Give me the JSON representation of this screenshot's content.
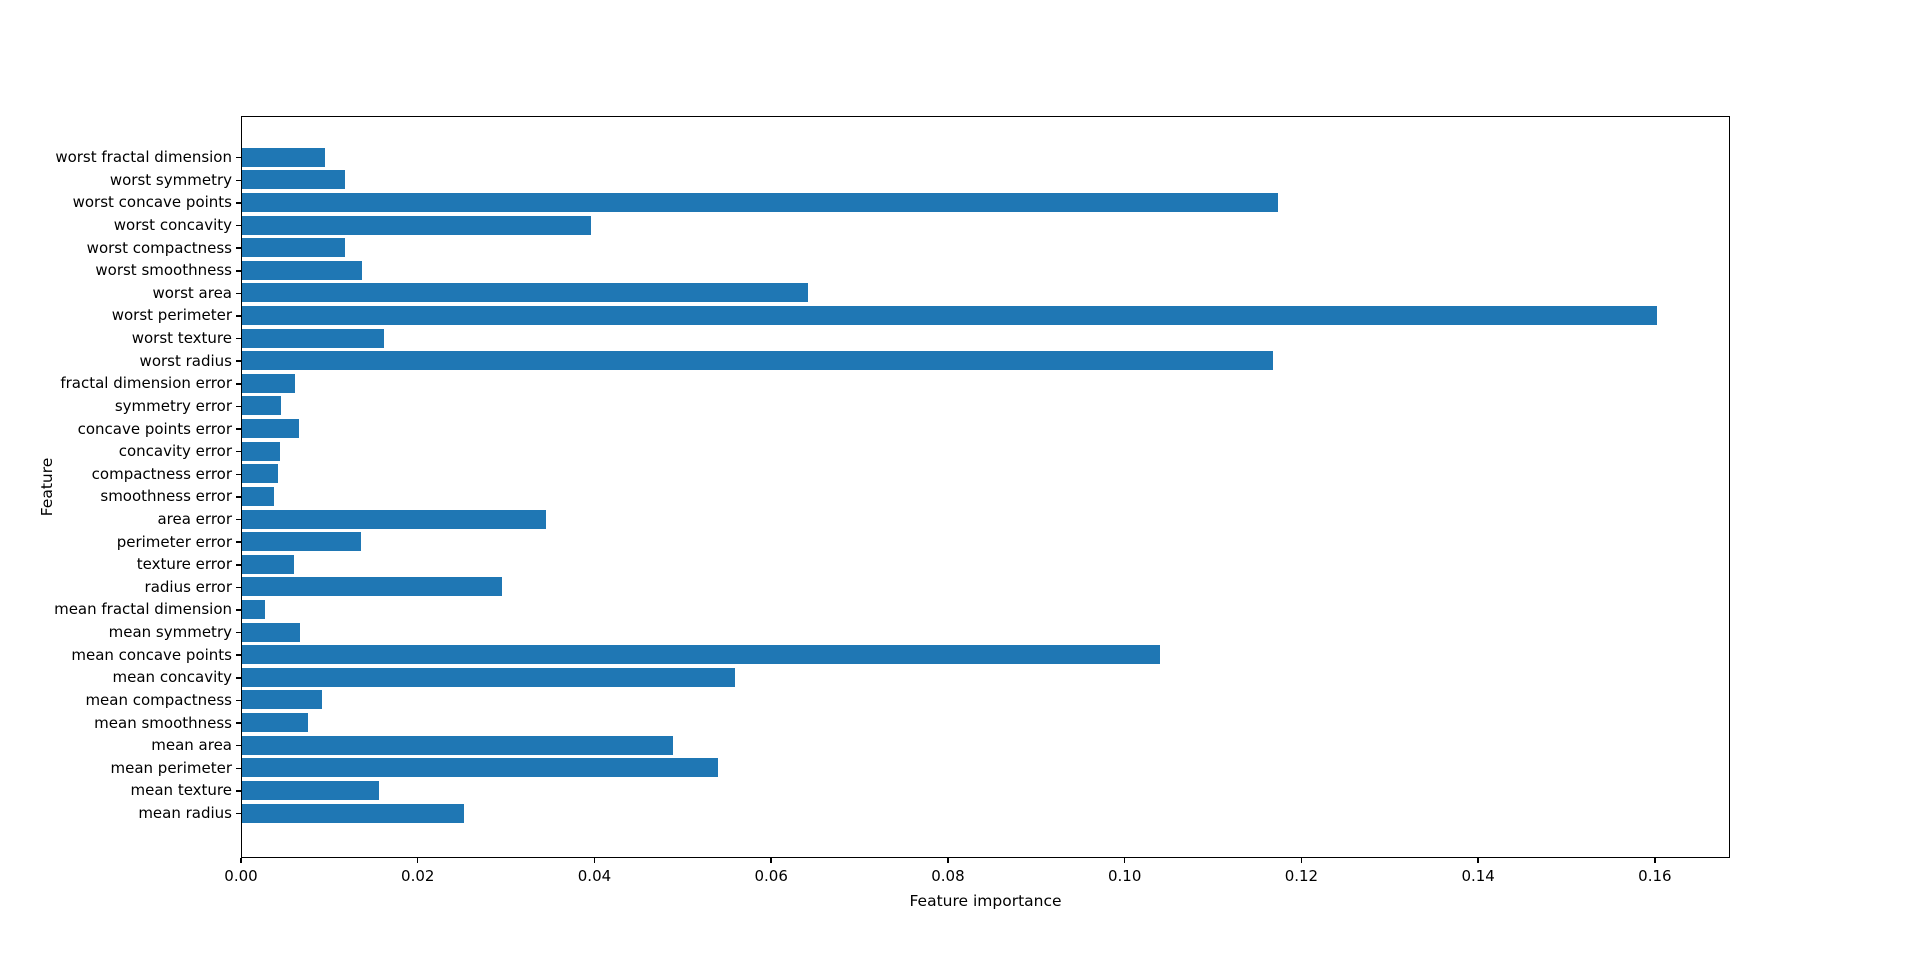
{
  "chart_data": {
    "type": "bar",
    "orientation": "horizontal",
    "order": "top-to-bottom",
    "title": "",
    "xlabel": "Feature importance",
    "ylabel": "Feature",
    "categories": [
      "worst fractal dimension",
      "worst symmetry",
      "worst concave points",
      "worst concavity",
      "worst compactness",
      "worst smoothness",
      "worst area",
      "worst perimeter",
      "worst texture",
      "worst radius",
      "fractal dimension error",
      "symmetry error",
      "concave points error",
      "concavity error",
      "compactness error",
      "smoothness error",
      "area error",
      "perimeter error",
      "texture error",
      "radius error",
      "mean fractal dimension",
      "mean symmetry",
      "mean concave points",
      "mean concavity",
      "mean compactness",
      "mean smoothness",
      "mean area",
      "mean perimeter",
      "mean texture",
      "mean radius"
    ],
    "values": [
      0.0094,
      0.0117,
      0.1172,
      0.0395,
      0.0117,
      0.0136,
      0.064,
      0.1601,
      0.0161,
      0.1167,
      0.006,
      0.0044,
      0.0065,
      0.0043,
      0.0041,
      0.0036,
      0.0344,
      0.0135,
      0.0059,
      0.0294,
      0.0026,
      0.0066,
      0.1039,
      0.0558,
      0.0091,
      0.0075,
      0.0488,
      0.0539,
      0.0155,
      0.0251
    ],
    "x_ticks": [
      "0.00",
      "0.02",
      "0.04",
      "0.06",
      "0.08",
      "0.10",
      "0.12",
      "0.14",
      "0.16"
    ],
    "xlim": [
      0,
      0.1685
    ],
    "bar_color": "#1f77b4",
    "background": "#ffffff",
    "grid": false,
    "legend": false
  }
}
